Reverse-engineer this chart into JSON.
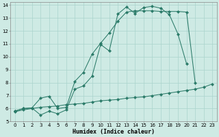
{
  "xlabel": "Humidex (Indice chaleur)",
  "bg_color": "#ceeae4",
  "grid_color": "#aad4cc",
  "line_color": "#2a7a68",
  "xlim": [
    -0.5,
    23.5
  ],
  "ylim": [
    5,
    14.2
  ],
  "xticks": [
    0,
    1,
    2,
    3,
    4,
    5,
    6,
    7,
    8,
    9,
    10,
    11,
    12,
    13,
    14,
    15,
    16,
    17,
    18,
    19,
    20,
    21,
    22,
    23
  ],
  "yticks": [
    5,
    6,
    7,
    8,
    9,
    10,
    11,
    12,
    13,
    14
  ],
  "line1_x": [
    0,
    1,
    2,
    3,
    4,
    5,
    6,
    7,
    8,
    9,
    10,
    11,
    12,
    13,
    14,
    15,
    16,
    17,
    18,
    19,
    20,
    21
  ],
  "line1_y": [
    5.8,
    6.0,
    6.05,
    5.5,
    5.8,
    5.6,
    5.9,
    7.5,
    7.75,
    8.5,
    10.95,
    10.45,
    13.3,
    13.85,
    13.35,
    13.8,
    13.9,
    13.75,
    13.25,
    11.75,
    9.45,
    null
  ],
  "line2_x": [
    0,
    1,
    2,
    3,
    4,
    5,
    6,
    7,
    8,
    9,
    10,
    11,
    12,
    13,
    14,
    15,
    16,
    17,
    18,
    19,
    20,
    21,
    22
  ],
  "line2_y": [
    5.8,
    6.0,
    6.05,
    6.8,
    6.95,
    6.0,
    6.1,
    8.1,
    8.8,
    10.2,
    11.05,
    11.85,
    12.75,
    13.45,
    13.55,
    13.55,
    13.55,
    13.5,
    13.5,
    13.5,
    13.45,
    8.0,
    null
  ],
  "line3_x": [
    0,
    1,
    2,
    3,
    4,
    5,
    6,
    7,
    8,
    9,
    10,
    11,
    12,
    13,
    14,
    15,
    16,
    17,
    18,
    19,
    20,
    21,
    22,
    23
  ],
  "line3_y": [
    5.75,
    5.9,
    6.0,
    6.1,
    6.15,
    6.2,
    6.3,
    6.35,
    6.4,
    6.5,
    6.6,
    6.65,
    6.7,
    6.8,
    6.85,
    6.9,
    7.0,
    7.1,
    7.2,
    7.3,
    7.4,
    7.5,
    7.65,
    7.9
  ]
}
